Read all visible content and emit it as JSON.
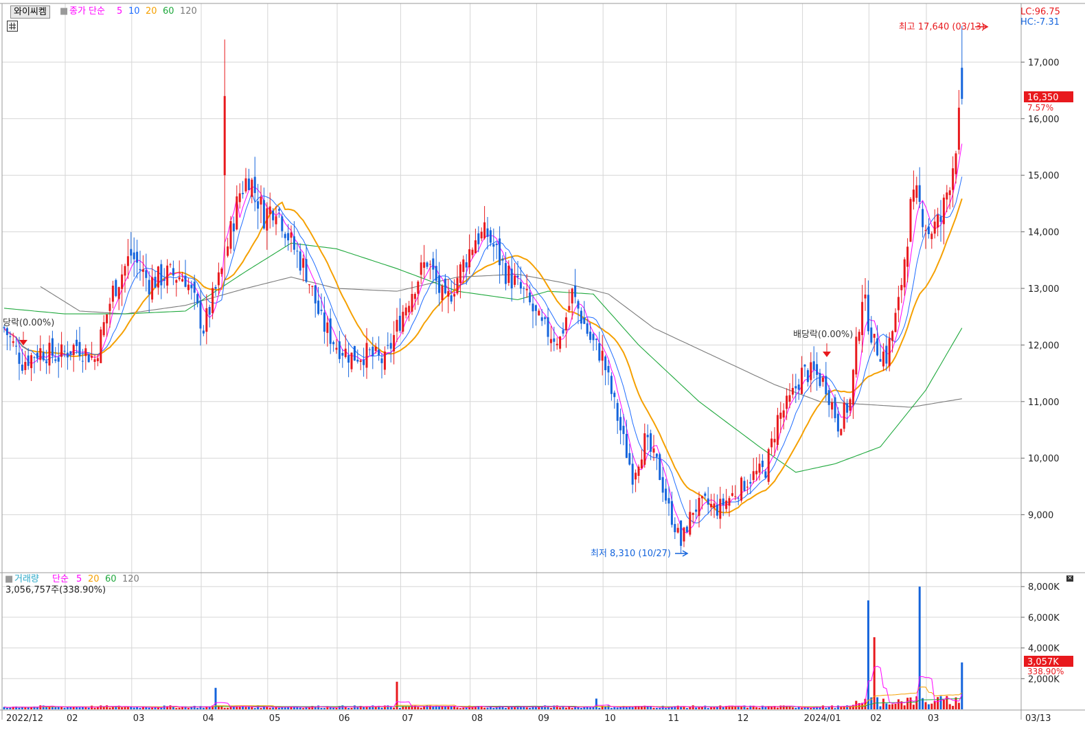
{
  "stock": {
    "name": "와이씨켐"
  },
  "price_legend": {
    "label": "종가 단순",
    "ma": [
      "5",
      "10",
      "20",
      "60",
      "120"
    ]
  },
  "volume_legend": {
    "label": "거래량",
    "method": "단순",
    "ma": [
      "5",
      "20",
      "60",
      "120"
    ]
  },
  "volume_info": "3,056,757주(338.90%)",
  "lc_text": "LC:96.75",
  "hc_text": "HC:-7.31",
  "current_price": "16,350",
  "current_change": "7.57%",
  "current_volume": "3,057K",
  "current_volume_pct": "338.90%",
  "high_annotation": "최고 17,640 (03/13)",
  "low_annotation": "최저 8,310 (10/27)",
  "dividend_annotation": "배당락(0.00%)",
  "dividend_annotation_left": "당락(0.00%)",
  "price_ticks": [
    "17,000",
    "16,000",
    "15,000",
    "14,000",
    "13,000",
    "12,000",
    "11,000",
    "10,000",
    "9,000"
  ],
  "volume_ticks": [
    "8,000K",
    "6,000K",
    "4,000K",
    "2,000K"
  ],
  "months": [
    "2022/12",
    "02",
    "03",
    "04",
    "05",
    "06",
    "07",
    "08",
    "09",
    "10",
    "11",
    "12",
    "2024/01",
    "02",
    "03"
  ],
  "last_date": "03/13",
  "colors": {
    "up": "#e8191d",
    "down": "#1464dc",
    "ma5": "#ff00ff",
    "ma10": "#1e6cff",
    "ma20": "#f5a000",
    "ma60": "#1ea83c",
    "ma120": "#7a7a7a",
    "grid": "#d6d6d6"
  },
  "chart_data": {
    "type": "candlestick",
    "title": "와이씨켐",
    "x_range": [
      "2022/12",
      "2024/03/13"
    ],
    "y_range": [
      8000,
      18000
    ],
    "high": {
      "value": 17640,
      "date": "03/13"
    },
    "low": {
      "value": 8310,
      "date": "10/27"
    },
    "last": {
      "value": 16350,
      "change_pct": 7.57
    },
    "close_path": [
      [
        0,
        12300
      ],
      [
        6,
        11700
      ],
      [
        12,
        11900
      ],
      [
        18,
        11800
      ],
      [
        24,
        12000
      ],
      [
        30,
        11750
      ],
      [
        36,
        12950
      ],
      [
        42,
        13600
      ],
      [
        48,
        13100
      ],
      [
        54,
        13250
      ],
      [
        60,
        13200
      ],
      [
        66,
        12300
      ],
      [
        72,
        13300
      ],
      [
        78,
        14700
      ],
      [
        81,
        15000
      ],
      [
        86,
        14300
      ],
      [
        90,
        14500
      ],
      [
        95,
        13800
      ],
      [
        100,
        13300
      ],
      [
        105,
        12400
      ],
      [
        110,
        12000
      ],
      [
        115,
        11800
      ],
      [
        120,
        11850
      ],
      [
        126,
        11700
      ],
      [
        132,
        12600
      ],
      [
        136,
        13100
      ],
      [
        140,
        13500
      ],
      [
        146,
        12700
      ],
      [
        150,
        13200
      ],
      [
        156,
        13900
      ],
      [
        160,
        13950
      ],
      [
        166,
        13300
      ],
      [
        172,
        12900
      ],
      [
        178,
        12300
      ],
      [
        184,
        12100
      ],
      [
        188,
        12900
      ],
      [
        194,
        12100
      ],
      [
        198,
        11800
      ],
      [
        204,
        10500
      ],
      [
        208,
        9700
      ],
      [
        212,
        10300
      ],
      [
        216,
        9900
      ],
      [
        220,
        9100
      ],
      [
        224,
        8500
      ],
      [
        228,
        9100
      ],
      [
        232,
        9200
      ],
      [
        236,
        9100
      ],
      [
        240,
        9300
      ],
      [
        244,
        9500
      ],
      [
        248,
        9700
      ],
      [
        252,
        9800
      ],
      [
        256,
        10700
      ],
      [
        260,
        11000
      ],
      [
        264,
        11500
      ],
      [
        268,
        11500
      ],
      [
        272,
        11300
      ],
      [
        276,
        10600
      ],
      [
        280,
        11000
      ],
      [
        284,
        12900
      ],
      [
        288,
        12000
      ],
      [
        292,
        11800
      ],
      [
        296,
        12700
      ],
      [
        300,
        14400
      ],
      [
        302,
        14600
      ],
      [
        306,
        14000
      ],
      [
        310,
        14200
      ],
      [
        314,
        15200
      ],
      [
        317,
        16350
      ]
    ],
    "ma60_path": [
      [
        0,
        12650
      ],
      [
        20,
        12550
      ],
      [
        40,
        12550
      ],
      [
        60,
        12600
      ],
      [
        80,
        13300
      ],
      [
        95,
        13800
      ],
      [
        110,
        13700
      ],
      [
        130,
        13350
      ],
      [
        150,
        12950
      ],
      [
        170,
        12800
      ],
      [
        180,
        12950
      ],
      [
        195,
        12900
      ],
      [
        210,
        12000
      ],
      [
        230,
        11000
      ],
      [
        250,
        10200
      ],
      [
        262,
        9750
      ],
      [
        275,
        9900
      ],
      [
        290,
        10200
      ],
      [
        305,
        11200
      ],
      [
        317,
        12300
      ]
    ],
    "ma120_path": [
      [
        10,
        13100
      ],
      [
        25,
        12600
      ],
      [
        40,
        12550
      ],
      [
        60,
        12700
      ],
      [
        80,
        13000
      ],
      [
        95,
        13200
      ],
      [
        110,
        13000
      ],
      [
        130,
        12950
      ],
      [
        150,
        13200
      ],
      [
        170,
        13250
      ],
      [
        185,
        13100
      ],
      [
        200,
        12900
      ],
      [
        215,
        12300
      ],
      [
        235,
        11800
      ],
      [
        255,
        11300
      ],
      [
        270,
        11000
      ],
      [
        285,
        10950
      ],
      [
        300,
        10900
      ],
      [
        317,
        11050
      ]
    ],
    "dividend_markers": [
      {
        "label": "배당락(0.00%)",
        "bar": 264,
        "value": 11850
      },
      {
        "label": "당락(0.00%)",
        "bar": 6,
        "value": 12050
      }
    ],
    "volume_spikes": [
      {
        "bar": 70,
        "value": 1400
      },
      {
        "bar": 130,
        "value": 1800
      },
      {
        "bar": 196,
        "value": 700
      },
      {
        "bar": 286,
        "value": 7100
      },
      {
        "bar": 288,
        "value": 4700
      },
      {
        "bar": 303,
        "value": 8000
      },
      {
        "bar": 317,
        "value": 3057
      }
    ]
  }
}
